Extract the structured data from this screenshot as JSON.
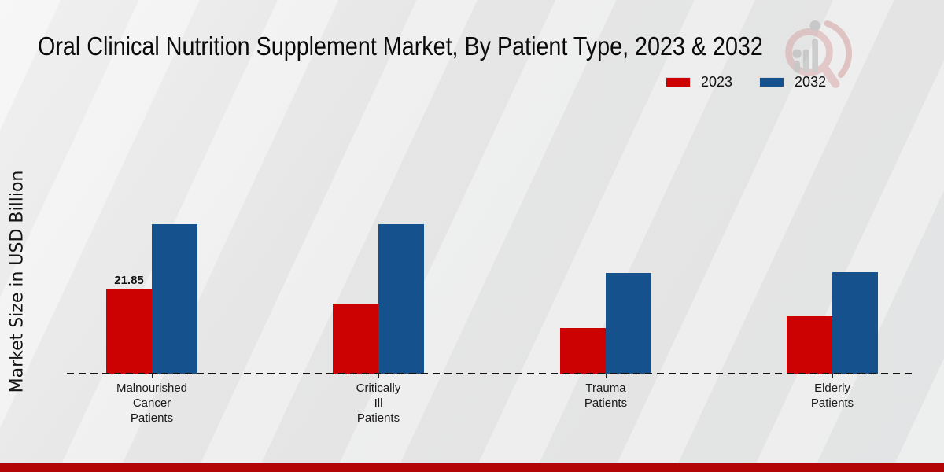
{
  "chart_data": {
    "type": "bar",
    "title": "Oral Clinical Nutrition Supplement Market, By Patient Type, 2023 & 2032",
    "ylabel": "Market Size in USD Billion",
    "xlabel": "",
    "categories": [
      "Malnourished Cancer Patients",
      "Critically Ill Patients",
      "Trauma Patients",
      "Elderly Patients"
    ],
    "category_label_lines": [
      [
        "Malnourished",
        "Cancer",
        "Patients"
      ],
      [
        "Critically",
        "Ill",
        "Patients"
      ],
      [
        "Trauma",
        "Patients"
      ],
      [
        "Elderly",
        "Patients"
      ]
    ],
    "series": [
      {
        "name": "2023",
        "color": "#cc0202",
        "values": [
          21.85,
          18.2,
          11.85,
          14.9
        ]
      },
      {
        "name": "2032",
        "color": "#15518c",
        "values": [
          38.8,
          38.8,
          26.1,
          26.3
        ]
      }
    ],
    "bar_value_labels": [
      {
        "series": "2023",
        "category_index": 0,
        "text": "21.85"
      }
    ],
    "ylim": [
      0,
      45
    ],
    "grid": false,
    "baseline_style": "dashed",
    "legend_position": "top-right"
  },
  "footer": {
    "accent_color": "#b30505"
  },
  "watermark": {
    "name": "magnifier-growth-chart-logo"
  }
}
